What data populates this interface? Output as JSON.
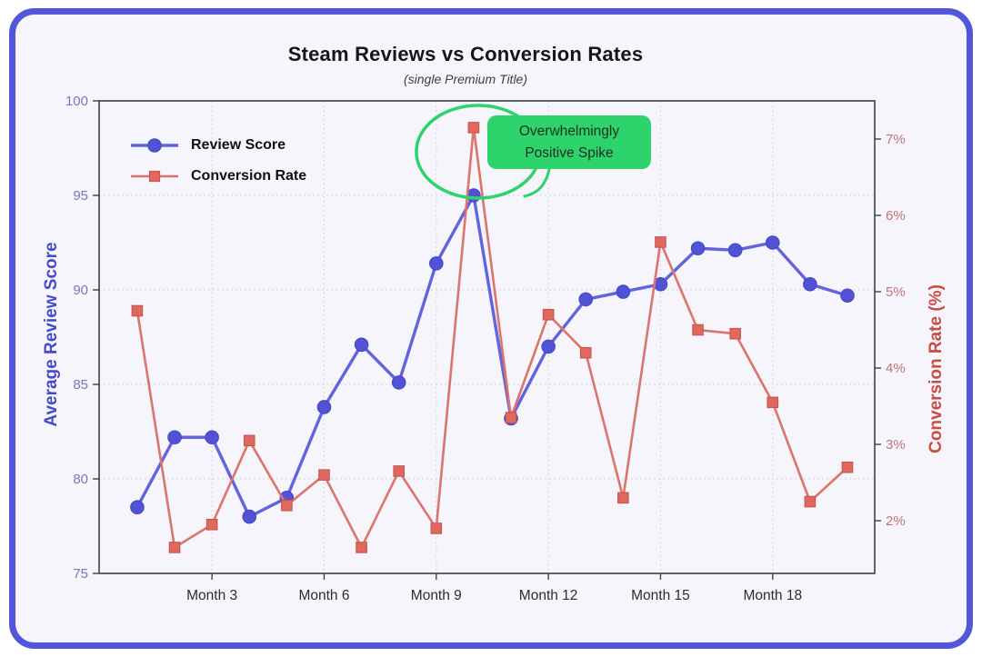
{
  "title": "Steam Reviews vs Conversion Rates",
  "subtitle": "(single Premium Title)",
  "colors": {
    "card_border": "#5257d9",
    "card_background": "#f5f5fb",
    "spine": "#40404a",
    "grid": "#d9d9e8",
    "title_text": "#15151e",
    "subtitle_text": "#3d3d47",
    "left_axis_label": "#4648cd",
    "left_tick_text": "#7779bb",
    "right_axis_label": "#cb4a42",
    "right_tick_text": "#c4737b",
    "x_tick_text": "#2c2c35",
    "legend_text": "#0f0f16",
    "review_line": "#6264de",
    "review_marker": "#5153d4",
    "review_marker_edge": "#4547c8",
    "conversion_line": "#dc746b",
    "conversion_marker": "#e0685e",
    "conversion_marker_edge": "#c8584e",
    "annotation_green": "#2ed36b"
  },
  "annotation": {
    "line1": "Overwhelmingly",
    "line2": "Positive Spike"
  },
  "chart_data": {
    "type": "line",
    "x": [
      1,
      2,
      3,
      4,
      5,
      6,
      7,
      8,
      9,
      10,
      11,
      12,
      13,
      14,
      15,
      16,
      17,
      18,
      19,
      20
    ],
    "x_unit": "Month",
    "x_ticks": [
      3,
      6,
      9,
      12,
      15,
      18
    ],
    "x_tick_labels": [
      "Month 3",
      "Month 6",
      "Month 9",
      "Month 12",
      "Month 15",
      "Month 18"
    ],
    "xlim": [
      -0.02,
      20.73
    ],
    "series": [
      {
        "name": "Review Score",
        "axis": "left",
        "marker": "circle",
        "values": [
          78.5,
          82.2,
          82.2,
          78.0,
          79.0,
          83.8,
          87.1,
          85.1,
          91.4,
          95.0,
          83.2,
          87.0,
          89.5,
          89.9,
          90.3,
          92.2,
          92.1,
          92.5,
          90.3,
          89.7
        ]
      },
      {
        "name": "Conversion Rate",
        "axis": "right",
        "marker": "square",
        "values": [
          4.75,
          1.65,
          1.95,
          3.05,
          2.2,
          2.6,
          1.65,
          2.65,
          1.9,
          7.15,
          3.35,
          4.7,
          4.2,
          2.3,
          5.65,
          4.5,
          4.45,
          3.55,
          2.25,
          2.7
        ]
      }
    ],
    "left_axis": {
      "label": "Average Review Score",
      "ticks": [
        75,
        80,
        85,
        90,
        95,
        100
      ],
      "range": [
        75,
        100
      ]
    },
    "right_axis": {
      "label": "Conversion Rate (%)",
      "ticks": [
        2,
        3,
        4,
        5,
        6,
        7
      ],
      "tick_suffix": "%",
      "range": [
        1.31,
        7.5
      ]
    },
    "grid": true,
    "legend_position": "upper-left",
    "annotation_anchor": {
      "month": 10,
      "review_score": 95.0,
      "conversion_rate": 7.15
    }
  }
}
